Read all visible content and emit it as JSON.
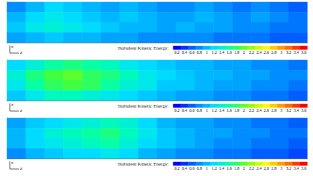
{
  "chart_data": [
    {
      "type": "heatmap",
      "xlabel": "z",
      "ylabel": "x",
      "tick_labels": false,
      "colorbar_label": "Turbulent Kinetic Energy:",
      "colorbar_range": [
        0.2,
        3.6
      ],
      "colorbar_ticks": [
        0.2,
        0.4,
        0.6,
        0.8,
        1,
        1.2,
        1.4,
        1.6,
        1.8,
        2,
        2.2,
        2.4,
        2.6,
        2.8,
        3,
        3.2,
        3.4,
        3.6
      ],
      "cells": [
        [
          0.8,
          1.0,
          1.2,
          1.1,
          1.0,
          0.9,
          1.0,
          0.9,
          0.8,
          0.8,
          0.9,
          0.8,
          0.7,
          0.8,
          0.7,
          0.6
        ],
        [
          1.0,
          1.2,
          1.3,
          1.2,
          1.1,
          1.0,
          1.1,
          1.0,
          0.9,
          0.9,
          1.0,
          0.9,
          0.8,
          0.9,
          0.8,
          0.7
        ],
        [
          1.1,
          1.3,
          1.4,
          1.3,
          1.2,
          1.1,
          1.0,
          1.0,
          0.9,
          1.0,
          0.9,
          0.9,
          0.8,
          0.8,
          0.7,
          0.7
        ],
        [
          0.9,
          1.0,
          1.1,
          1.0,
          1.0,
          0.9,
          0.9,
          0.8,
          0.8,
          0.8,
          0.8,
          0.7,
          0.7,
          0.7,
          0.6,
          0.6
        ]
      ]
    },
    {
      "type": "heatmap",
      "xlabel": "z",
      "ylabel": "x",
      "tick_labels": false,
      "colorbar_label": "Turbulent Kinetic Energy:",
      "colorbar_range": [
        0.2,
        3.6
      ],
      "colorbar_ticks": [
        0.2,
        0.4,
        0.6,
        0.8,
        1,
        1.2,
        1.4,
        1.6,
        1.8,
        2,
        2.2,
        2.4,
        2.6,
        2.8,
        3,
        3.2,
        3.4,
        3.6
      ],
      "cells": [
        [
          1.2,
          1.4,
          1.6,
          1.7,
          1.6,
          1.5,
          1.3,
          1.2,
          1.1,
          1.0,
          1.0,
          0.9,
          0.9,
          0.8,
          0.8,
          0.7
        ],
        [
          1.4,
          1.7,
          1.9,
          2.0,
          1.8,
          1.7,
          1.5,
          1.3,
          1.2,
          1.1,
          1.0,
          1.0,
          0.9,
          0.9,
          0.8,
          0.8
        ],
        [
          1.3,
          1.6,
          1.8,
          1.9,
          1.8,
          1.6,
          1.4,
          1.3,
          1.1,
          1.1,
          1.0,
          0.9,
          0.9,
          0.8,
          0.8,
          0.7
        ],
        [
          1.1,
          1.3,
          1.5,
          1.5,
          1.4,
          1.3,
          1.2,
          1.1,
          1.0,
          0.9,
          0.9,
          0.8,
          0.8,
          0.7,
          0.7,
          0.6
        ]
      ]
    },
    {
      "type": "heatmap",
      "xlabel": "z",
      "ylabel": "x",
      "tick_labels": false,
      "colorbar_label": "Turbulent Kinetic Energy:",
      "colorbar_range": [
        0.2,
        3.6
      ],
      "colorbar_ticks": [
        0.2,
        0.4,
        0.6,
        0.8,
        1,
        1.2,
        1.4,
        1.6,
        1.8,
        2,
        2.2,
        2.4,
        2.6,
        2.8,
        3,
        3.2,
        3.4,
        3.6
      ],
      "cells": [
        [
          0.9,
          1.1,
          1.2,
          1.3,
          1.4,
          1.5,
          1.4,
          1.2,
          1.0,
          0.9,
          0.9,
          0.8,
          0.8,
          0.7,
          0.7,
          0.6
        ],
        [
          1.0,
          1.2,
          1.4,
          1.5,
          1.6,
          1.7,
          1.5,
          1.3,
          1.1,
          1.0,
          0.9,
          0.9,
          0.8,
          0.8,
          0.7,
          0.7
        ],
        [
          1.0,
          1.2,
          1.3,
          1.4,
          1.5,
          1.6,
          1.4,
          1.2,
          1.1,
          1.0,
          0.9,
          0.8,
          0.8,
          0.7,
          0.7,
          0.6
        ],
        [
          0.8,
          1.0,
          1.1,
          1.2,
          1.2,
          1.3,
          1.2,
          1.0,
          0.9,
          0.8,
          0.8,
          0.7,
          0.7,
          0.6,
          0.6,
          0.5
        ]
      ]
    }
  ]
}
